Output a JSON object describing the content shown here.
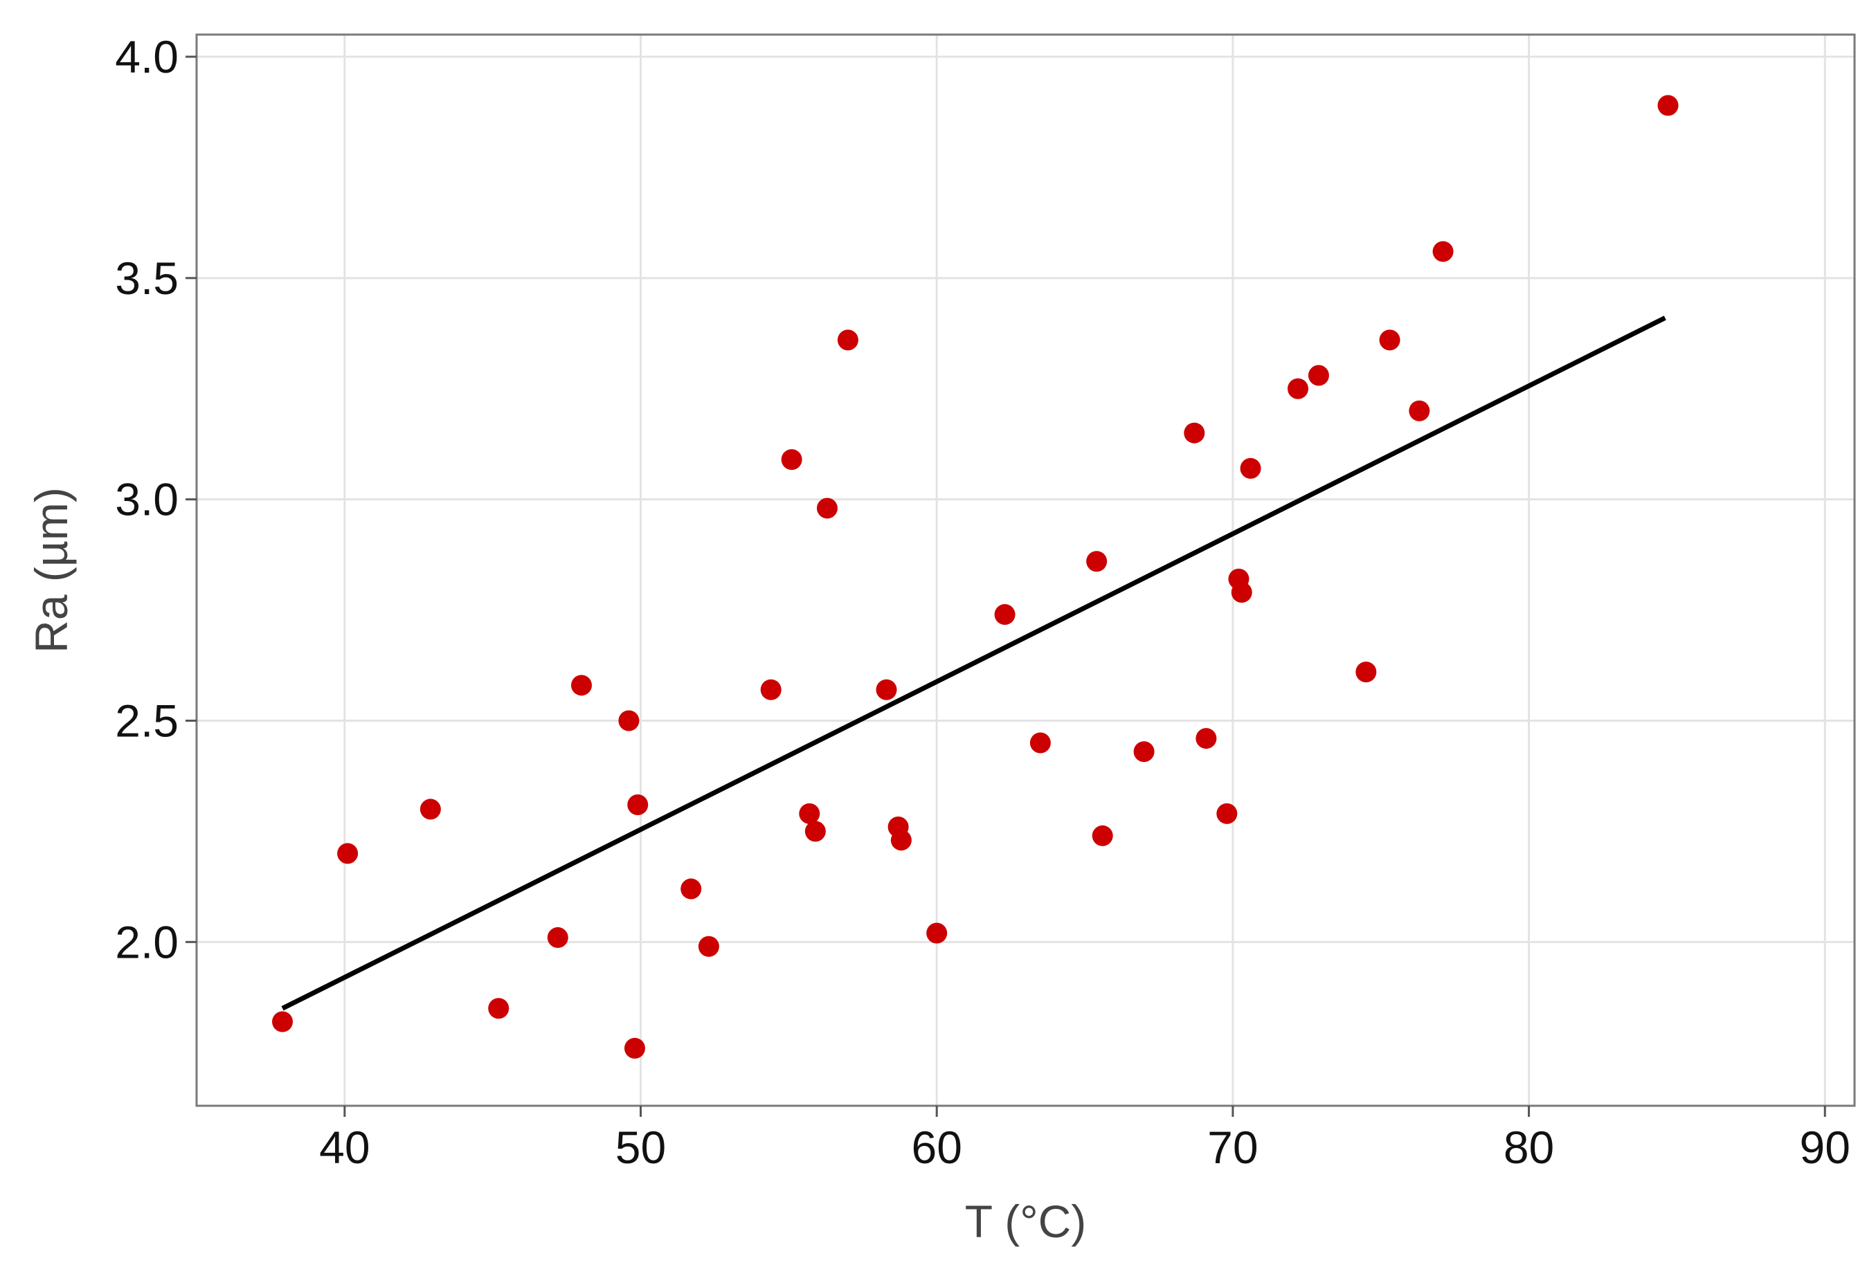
{
  "chart_data": {
    "type": "scatter",
    "title": "",
    "xlabel": "T (°C)",
    "ylabel": "Ra (µm)",
    "xlim": [
      35,
      91
    ],
    "ylim": [
      1.63,
      4.05
    ],
    "x_ticks": [
      40,
      50,
      60,
      70,
      80,
      90
    ],
    "y_ticks": [
      2.0,
      2.5,
      3.0,
      3.5,
      4.0
    ],
    "x_tick_labels": [
      "40",
      "50",
      "60",
      "70",
      "80",
      "90"
    ],
    "y_tick_labels": [
      "2.0",
      "2.5",
      "3.0",
      "3.5",
      "4.0"
    ],
    "grid": true,
    "legend": "none",
    "point_color": "#cc0000",
    "line_color": "#000000",
    "points": [
      {
        "x": 37.9,
        "y": 1.82
      },
      {
        "x": 40.1,
        "y": 2.2
      },
      {
        "x": 42.9,
        "y": 2.3
      },
      {
        "x": 45.2,
        "y": 1.85
      },
      {
        "x": 47.2,
        "y": 2.01
      },
      {
        "x": 48.0,
        "y": 2.58
      },
      {
        "x": 49.6,
        "y": 2.5
      },
      {
        "x": 49.8,
        "y": 1.76
      },
      {
        "x": 49.9,
        "y": 2.31
      },
      {
        "x": 51.7,
        "y": 2.12
      },
      {
        "x": 52.3,
        "y": 1.99
      },
      {
        "x": 54.4,
        "y": 2.57
      },
      {
        "x": 55.1,
        "y": 3.09
      },
      {
        "x": 55.7,
        "y": 2.29
      },
      {
        "x": 55.9,
        "y": 2.25
      },
      {
        "x": 56.3,
        "y": 2.98
      },
      {
        "x": 57.0,
        "y": 3.36
      },
      {
        "x": 58.3,
        "y": 2.57
      },
      {
        "x": 58.7,
        "y": 2.26
      },
      {
        "x": 58.8,
        "y": 2.23
      },
      {
        "x": 60.0,
        "y": 2.02
      },
      {
        "x": 62.3,
        "y": 2.74
      },
      {
        "x": 63.5,
        "y": 2.45
      },
      {
        "x": 65.4,
        "y": 2.86
      },
      {
        "x": 65.6,
        "y": 2.24
      },
      {
        "x": 67.0,
        "y": 2.43
      },
      {
        "x": 68.7,
        "y": 3.15
      },
      {
        "x": 69.1,
        "y": 2.46
      },
      {
        "x": 69.8,
        "y": 2.29
      },
      {
        "x": 70.2,
        "y": 2.82
      },
      {
        "x": 70.3,
        "y": 2.79
      },
      {
        "x": 70.6,
        "y": 3.07
      },
      {
        "x": 72.2,
        "y": 3.25
      },
      {
        "x": 72.9,
        "y": 3.28
      },
      {
        "x": 74.5,
        "y": 2.61
      },
      {
        "x": 75.3,
        "y": 3.36
      },
      {
        "x": 76.3,
        "y": 3.2
      },
      {
        "x": 77.1,
        "y": 3.56
      },
      {
        "x": 84.7,
        "y": 3.89
      }
    ],
    "fit_line": {
      "x1": 37.9,
      "y1": 1.85,
      "x2": 84.6,
      "y2": 3.41
    }
  }
}
